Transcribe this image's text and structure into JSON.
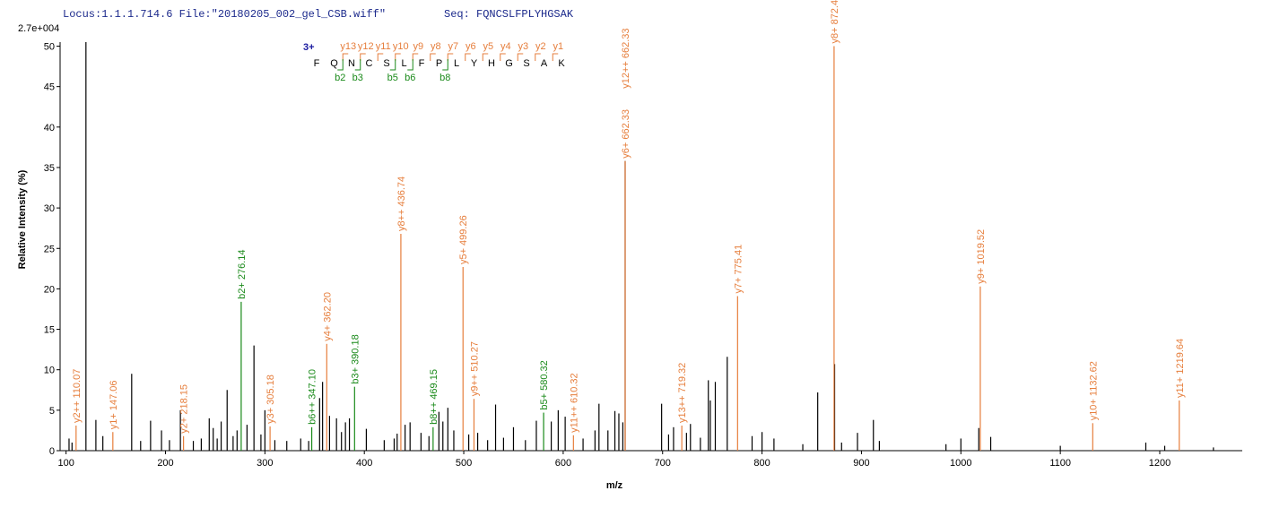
{
  "chart_data": {
    "type": "spectrum",
    "header": "Locus:1.1.1.714.6 File:\"20180205_002_gel_CSB.wiff\"",
    "seq_label": "Seq: FQNCSLFPLYHGSAK",
    "intensity_max": "2.7e+004",
    "y_label": "Relative   Intensity (%)",
    "x_label": "m/z",
    "xlim": [
      94,
      1283
    ],
    "ylim": [
      0,
      50.5
    ],
    "xticks": [
      100,
      200,
      300,
      400,
      500,
      600,
      700,
      800,
      900,
      1000,
      1100,
      1200
    ],
    "yticks": [
      0,
      5,
      10,
      15,
      20,
      25,
      30,
      35,
      40,
      45,
      50
    ],
    "sequence": {
      "charge": "3+",
      "residues": [
        "F",
        "Q",
        "N",
        "C",
        "S",
        "L",
        "F",
        "P",
        "L",
        "Y",
        "H",
        "G",
        "S",
        "A",
        "K"
      ],
      "y_labels": [
        null,
        "y13",
        "y12",
        "y11",
        "y10",
        "y9",
        "y8",
        "y7",
        "y6",
        "y5",
        "y4",
        "y3",
        "y2",
        "y1"
      ],
      "b_labels": [
        null,
        "b2",
        "b3",
        null,
        "b5",
        "b6",
        null,
        "b8",
        null,
        null,
        null,
        null,
        null,
        null
      ]
    },
    "series": [
      {
        "color": "#000000",
        "x": [
          103,
          106,
          120,
          130,
          137,
          166,
          175,
          185,
          196,
          204,
          215,
          228,
          236,
          244,
          248,
          252,
          256,
          262,
          268,
          272,
          282,
          289,
          296,
          300,
          310,
          322,
          336,
          344,
          355,
          358,
          365,
          372,
          377,
          381,
          385,
          402,
          420,
          430,
          433,
          441,
          446,
          457,
          465,
          475,
          479,
          484,
          490,
          505,
          514,
          524,
          532,
          540,
          550,
          562,
          573,
          588,
          595,
          602,
          620,
          632,
          636,
          645,
          652,
          656,
          660,
          699,
          706,
          711,
          724,
          728,
          738,
          746,
          748,
          753,
          765,
          790,
          800,
          812,
          841,
          856,
          873,
          880,
          896,
          912,
          918,
          985,
          1000,
          1018,
          1030,
          1100,
          1186,
          1205,
          1254
        ],
        "values": [
          1.5,
          1,
          50.5,
          3.8,
          1.8,
          9.5,
          1.2,
          3.7,
          2.5,
          1.3,
          5,
          1.2,
          1.5,
          4,
          2.8,
          1.5,
          3.6,
          7.5,
          1.8,
          2.5,
          3.2,
          13,
          2,
          5,
          1.3,
          1.2,
          1.5,
          1.2,
          6.5,
          8.5,
          4.3,
          4,
          2.3,
          3.5,
          4,
          2.7,
          1.3,
          1.5,
          2.1,
          3.2,
          3.5,
          2.2,
          1.8,
          4.8,
          3.6,
          5.3,
          2.5,
          2,
          2.2,
          1.3,
          5.7,
          1.6,
          2.9,
          1.3,
          3.7,
          3.6,
          5,
          4.2,
          1.5,
          2.5,
          5.8,
          2.5,
          4.9,
          4.6,
          3.5,
          5.8,
          2,
          2.9,
          2.2,
          3.3,
          1.6,
          8.7,
          6.2,
          8.5,
          11.6,
          1.8,
          2.3,
          1.5,
          0.8,
          7.2,
          10.7,
          1,
          2.2,
          3.8,
          1.2,
          0.8,
          1.5,
          2.8,
          1.7,
          0.6,
          1,
          0.6,
          0.4
        ]
      }
    ],
    "annotations": [
      {
        "label": "y2++ 110.07",
        "x": 110.07,
        "value": 3.1,
        "color": "#e67e3c"
      },
      {
        "label": "y1+ 147.06",
        "x": 147.06,
        "value": 2.3,
        "color": "#e67e3c"
      },
      {
        "label": "y2+ 218.15",
        "x": 218.15,
        "value": 1.8,
        "color": "#e67e3c"
      },
      {
        "label": "b2+ 276.14",
        "x": 276.14,
        "value": 18.4,
        "color": "#1a8a1a"
      },
      {
        "label": "y3+ 305.18",
        "x": 305.18,
        "value": 3.0,
        "color": "#e67e3c"
      },
      {
        "label": "b6++ 347.10",
        "x": 347.1,
        "value": 2.9,
        "color": "#1a8a1a"
      },
      {
        "label": "y4+ 362.20",
        "x": 362.2,
        "value": 13.2,
        "color": "#e67e3c"
      },
      {
        "label": "b3+ 390.18",
        "x": 390.18,
        "value": 7.9,
        "color": "#1a8a1a"
      },
      {
        "label": "y8++ 436.74",
        "x": 436.74,
        "value": 26.8,
        "color": "#e67e3c"
      },
      {
        "label": "b8++ 469.15",
        "x": 469.15,
        "value": 2.9,
        "color": "#1a8a1a"
      },
      {
        "label": "y5+ 499.26",
        "x": 499.26,
        "value": 22.7,
        "color": "#e67e3c"
      },
      {
        "label": "y9++ 510.27",
        "x": 510.27,
        "value": 6.4,
        "color": "#e67e3c"
      },
      {
        "label": "b5+ 580.32",
        "x": 580.32,
        "value": 4.7,
        "color": "#1a8a1a"
      },
      {
        "label": "y11++ 610.32",
        "x": 610.32,
        "value": 1.9,
        "color": "#e67e3c"
      },
      {
        "label": "y6+ 662.33",
        "x": 662.33,
        "value": 35.8,
        "color": "#000000"
      },
      {
        "label": "y13++ 719.32",
        "x": 719.32,
        "value": 3.1,
        "color": "#e67e3c"
      },
      {
        "label": "y7+ 775.41",
        "x": 775.41,
        "value": 19.1,
        "color": "#e67e3c"
      },
      {
        "label": "y8+ 872.46",
        "x": 872.46,
        "value": 50.0,
        "color": "#e67e3c"
      },
      {
        "label": "y9+ 1019.52",
        "x": 1019.52,
        "value": 20.3,
        "color": "#e67e3c"
      },
      {
        "label": "y10+ 1132.62",
        "x": 1132.62,
        "value": 3.4,
        "color": "#e67e3c"
      },
      {
        "label": "y11+ 1219.64",
        "x": 1219.64,
        "value": 6.2,
        "color": "#e67e3c"
      }
    ],
    "stacked_label": {
      "label": "y12++ 662.33",
      "x": 662.33,
      "value": 35.8,
      "color": "#e67e3c"
    }
  }
}
